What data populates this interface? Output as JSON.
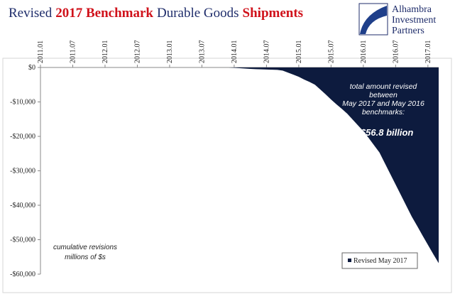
{
  "chart_data": {
    "type": "area",
    "title_parts": [
      {
        "text": "Revised",
        "color": "#1f2d6b",
        "bold": false
      },
      {
        "text": "2017 Benchmark",
        "color": "#d0121b",
        "bold": true
      },
      {
        "text": "Durable Goods",
        "color": "#1f2d6b",
        "bold": false
      },
      {
        "text": "Shipments",
        "color": "#d0121b",
        "bold": true
      }
    ],
    "logo": [
      "Alhambra",
      "Investment",
      "Partners"
    ],
    "annotation": [
      "total amount revised",
      "between",
      "May 2017 and May 2016",
      "benchmarks:"
    ],
    "annotation_value": "-$56.8 billion",
    "note": [
      "cumulative revisions",
      "millions of $s"
    ],
    "categories": [
      "2011.01",
      null,
      null,
      null,
      null,
      null,
      "2011.07",
      null,
      null,
      null,
      null,
      null,
      "2012.01",
      null,
      null,
      null,
      null,
      null,
      "2012.07",
      null,
      null,
      null,
      null,
      null,
      "2013.01",
      null,
      null,
      null,
      null,
      null,
      "2013.07",
      null,
      null,
      null,
      null,
      null,
      "2014.01",
      null,
      null,
      null,
      null,
      null,
      "2014.07",
      null,
      null,
      null,
      null,
      null,
      "2015.01",
      null,
      null,
      null,
      null,
      null,
      "2015.07",
      null,
      null,
      null,
      null,
      null,
      "2016.01",
      null,
      null,
      null,
      null,
      null,
      "2016.07",
      null,
      null,
      null,
      null,
      null,
      "2017.01",
      null,
      null
    ],
    "series": [
      {
        "name": "Revised May 2017",
        "color": "#0d1b3e",
        "values": [
          0,
          0,
          0,
          0,
          0,
          0,
          0,
          0,
          0,
          0,
          0,
          0,
          0,
          0,
          0,
          0,
          0,
          0,
          0,
          0,
          0,
          0,
          0,
          0,
          0,
          0,
          0,
          0,
          0,
          0,
          0,
          0,
          0,
          0,
          0,
          0,
          -100,
          -200,
          -300,
          -400,
          -500,
          -550,
          -600,
          -650,
          -700,
          -900,
          -1500,
          -2100,
          -2700,
          -3500,
          -4200,
          -5000,
          -6400,
          -7800,
          -9300,
          -10700,
          -12000,
          -13400,
          -15100,
          -16800,
          -18500,
          -20500,
          -22600,
          -24700,
          -27800,
          -30900,
          -34000,
          -37100,
          -40200,
          -43300,
          -46000,
          -48800,
          -51500,
          -54200,
          -56800
        ]
      }
    ],
    "ylim": [
      -60000,
      0
    ],
    "yticks": [
      {
        "value": 0,
        "label": "$0"
      },
      {
        "value": -10000,
        "label": "-$10,000"
      },
      {
        "value": -20000,
        "label": "-$20,000"
      },
      {
        "value": -30000,
        "label": "-$30,000"
      },
      {
        "value": -40000,
        "label": "-$40,000"
      },
      {
        "value": -50000,
        "label": "-$50,000"
      },
      {
        "value": -60000,
        "label": "-$60,000"
      }
    ],
    "legend": "bottom-right"
  }
}
